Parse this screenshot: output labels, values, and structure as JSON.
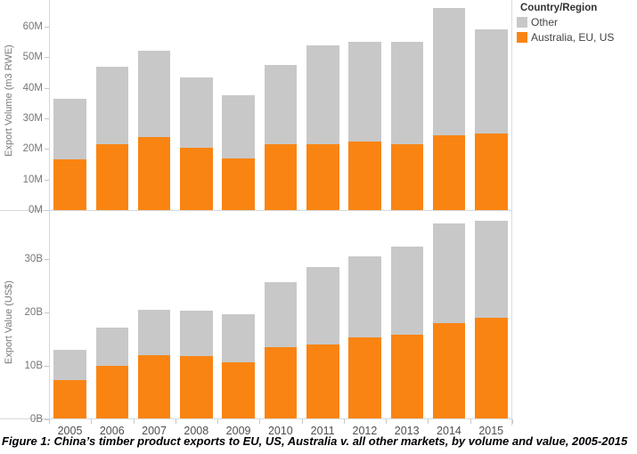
{
  "caption": "Figure 1: China’s timber product exports to EU, US, Australia v. all other markets, by volume and value, 2005-2015",
  "legend": {
    "title": "Country/Region",
    "position": "top-right",
    "items": [
      {
        "label": "Other",
        "color": "#C8C8C8"
      },
      {
        "label": "Australia, EU, US",
        "color": "#F98412"
      }
    ]
  },
  "chart_data": [
    {
      "type": "bar",
      "stacked": true,
      "title": "",
      "xlabel": "",
      "ylabel": "Export Volume (m3 RWE)",
      "unit": "million m3 RWE",
      "grid": false,
      "ylim": [
        0,
        67
      ],
      "yticks": [
        0,
        10,
        20,
        30,
        40,
        50,
        60
      ],
      "ytick_labels": [
        "0M",
        "10M",
        "20M",
        "30M",
        "40M",
        "50M",
        "60M"
      ],
      "categories": [
        "2005",
        "2006",
        "2007",
        "2008",
        "2009",
        "2010",
        "2011",
        "2012",
        "2013",
        "2014",
        "2015"
      ],
      "series": [
        {
          "name": "Australia, EU, US",
          "color": "#F98412",
          "values": [
            16.5,
            21.5,
            24.0,
            20.5,
            17.0,
            21.5,
            21.5,
            22.5,
            21.5,
            24.5,
            25.0
          ]
        },
        {
          "name": "Other",
          "color": "#C8C8C8",
          "values": [
            20.0,
            25.5,
            28.0,
            23.0,
            20.5,
            26.0,
            32.5,
            32.5,
            33.5,
            41.5,
            34.0
          ]
        }
      ],
      "totals": [
        36.5,
        47.0,
        52.0,
        43.5,
        37.5,
        47.5,
        54.0,
        55.0,
        55.0,
        66.0,
        59.0
      ]
    },
    {
      "type": "bar",
      "stacked": true,
      "title": "",
      "xlabel": "",
      "ylabel": "Export Value (US$)",
      "unit": "billion US$",
      "grid": false,
      "ylim": [
        0,
        37.6
      ],
      "yticks": [
        0,
        10,
        20,
        30
      ],
      "ytick_labels": [
        "0B",
        "10B",
        "20B",
        "30B"
      ],
      "categories": [
        "2005",
        "2006",
        "2007",
        "2008",
        "2009",
        "2010",
        "2011",
        "2012",
        "2013",
        "2014",
        "2015"
      ],
      "series": [
        {
          "name": "Australia, EU, US",
          "color": "#F98412",
          "values": [
            7.3,
            10.0,
            12.0,
            11.8,
            10.7,
            13.5,
            14.0,
            15.3,
            15.8,
            18.0,
            18.9
          ]
        },
        {
          "name": "Other",
          "color": "#C8C8C8",
          "values": [
            5.7,
            7.2,
            8.5,
            8.6,
            8.9,
            12.1,
            14.5,
            15.3,
            16.5,
            18.7,
            18.3
          ]
        }
      ],
      "totals": [
        13.0,
        17.2,
        20.5,
        20.4,
        19.6,
        25.6,
        28.5,
        30.6,
        32.3,
        36.7,
        37.2
      ]
    }
  ],
  "x_axis": {
    "categories": [
      "2005",
      "2006",
      "2007",
      "2008",
      "2009",
      "2010",
      "2011",
      "2012",
      "2013",
      "2014",
      "2015"
    ]
  }
}
